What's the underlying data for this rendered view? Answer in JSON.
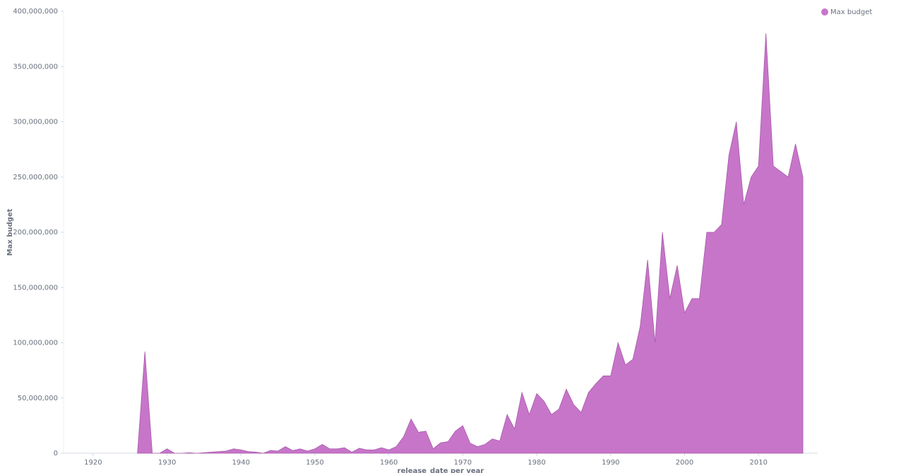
{
  "chart_data": {
    "type": "area",
    "y_label": "Max budget",
    "x_label": "release_date per year",
    "series": [
      {
        "name": "Max budget",
        "color": "#c775c9",
        "x": [
          1926,
          1927,
          1928,
          1929,
          1930,
          1931,
          1932,
          1933,
          1934,
          1935,
          1936,
          1937,
          1938,
          1939,
          1940,
          1941,
          1942,
          1943,
          1944,
          1945,
          1946,
          1947,
          1948,
          1949,
          1950,
          1951,
          1952,
          1953,
          1954,
          1955,
          1956,
          1957,
          1958,
          1959,
          1960,
          1961,
          1962,
          1963,
          1964,
          1965,
          1966,
          1967,
          1968,
          1969,
          1970,
          1971,
          1972,
          1973,
          1974,
          1975,
          1976,
          1977,
          1978,
          1979,
          1980,
          1981,
          1982,
          1983,
          1984,
          1985,
          1986,
          1987,
          1988,
          1989,
          1990,
          1991,
          1992,
          1993,
          1994,
          1995,
          1996,
          1997,
          1998,
          1999,
          2000,
          2001,
          2002,
          2003,
          2004,
          2005,
          2006,
          2007,
          2008,
          2009,
          2010,
          2011,
          2012,
          2013,
          2014,
          2015,
          2016
        ],
        "values": [
          0,
          92000000,
          0,
          0,
          4000000,
          0,
          0,
          500000,
          0,
          500000,
          1000000,
          1500000,
          2000000,
          4000000,
          3000000,
          1500000,
          1000000,
          0,
          2500000,
          2000000,
          6000000,
          2500000,
          4000000,
          2000000,
          4000000,
          8000000,
          4000000,
          4000000,
          5000000,
          1000000,
          4500000,
          3000000,
          3000000,
          5000000,
          3000000,
          6000000,
          15000000,
          31000000,
          19000000,
          20000000,
          4000000,
          9500000,
          10500000,
          20000000,
          25000000,
          9000000,
          6000000,
          8000000,
          13000000,
          11000000,
          35000000,
          22000000,
          55000000,
          35000000,
          54000000,
          47000000,
          35000000,
          40000000,
          58000000,
          44000000,
          37000000,
          55000000,
          63000000,
          70000000,
          70000000,
          100000000,
          80000000,
          85000000,
          115000000,
          175000000,
          100000000,
          200000000,
          140000000,
          170000000,
          127000000,
          140000000,
          140000000,
          200000000,
          200000000,
          207000000,
          270000000,
          300000000,
          225000000,
          250000000,
          260000000,
          380000000,
          260000000,
          255000000,
          250000000,
          280000000,
          250000000
        ]
      }
    ],
    "xlim": [
      1916,
      2018
    ],
    "xticks": [
      1920,
      1930,
      1940,
      1950,
      1960,
      1970,
      1980,
      1990,
      2000,
      2010
    ],
    "ylim": [
      0,
      400000000
    ],
    "yticks": [
      {
        "value": 0,
        "label": "0"
      },
      {
        "value": 50000000,
        "label": "50,000,000"
      },
      {
        "value": 100000000,
        "label": "100,000,000"
      },
      {
        "value": 150000000,
        "label": "150,000,000"
      },
      {
        "value": 200000000,
        "label": "200,000,000"
      },
      {
        "value": 250000000,
        "label": "250,000,000"
      },
      {
        "value": 300000000,
        "label": "300,000,000"
      },
      {
        "value": 350000000,
        "label": "350,000,000"
      },
      {
        "value": 400000000,
        "label": "400,000,000"
      }
    ],
    "legend": "top-right"
  }
}
